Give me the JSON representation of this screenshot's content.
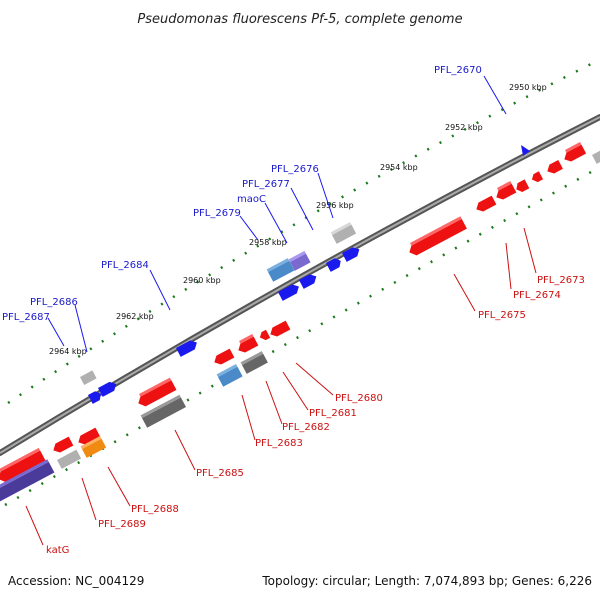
{
  "title": "Pseudomonas fluorescens Pf-5, complete genome",
  "footer": {
    "accession": "Accession: NC_004129",
    "summary": "Topology: circular; Length: 7,074,893 bp; Genes: 6,226"
  },
  "scale_labels": [
    "2950 kbp",
    "2952 kbp",
    "2954 kbp",
    "2956 kbp",
    "2958 kbp",
    "2960 kbp",
    "2962 kbp",
    "2964 kbp"
  ],
  "top_strand_labels": [
    "PFL_2670",
    "PFL_2676",
    "PFL_2677",
    "maoC",
    "PFL_2679",
    "PFL_2684",
    "PFL_2686",
    "PFL_2687"
  ],
  "bottom_strand_labels": [
    "PFL_2673",
    "PFL_2674",
    "PFL_2675",
    "PFL_2680",
    "PFL_2681",
    "PFL_2682",
    "PFL_2683",
    "PFL_2685",
    "PFL_2688",
    "PFL_2689",
    "katG"
  ],
  "colors": {
    "forward_gene": "#1a1aee",
    "reverse_gene": "#ee1111",
    "backbone": "#777777",
    "scale_dots": "#1e7a1e",
    "purple_gene": "#4a3a9a",
    "light_blue_gene": "#4a8ac8",
    "grey_gene": "#b0b0b0",
    "dark_grey_gene": "#666666",
    "orange_gene": "#f08a10",
    "violet_gene": "#7a6ad0"
  }
}
